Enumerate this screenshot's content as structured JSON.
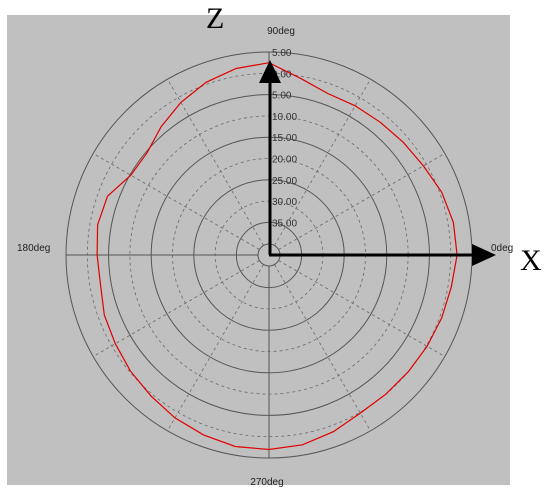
{
  "chart_data": {
    "type": "polar",
    "angle_labels": {
      "a0": "0deg",
      "a90": "90deg",
      "a180": "180deg",
      "a270": "270deg"
    },
    "radial_ticks": [
      "5.00",
      "0.00",
      "5.00",
      "10.00",
      "15.00",
      "20.00",
      "25.00",
      "30.00",
      "35.00"
    ],
    "axis_names": {
      "vertical": "Z",
      "horizontal": "X"
    },
    "grid": true,
    "series": [
      {
        "color": "#e00000",
        "angle_deg": [
          0,
          10,
          20,
          30,
          40,
          50,
          60,
          70,
          80,
          90,
          100,
          110,
          120,
          130,
          140,
          150,
          160,
          170,
          180,
          190,
          200,
          210,
          220,
          230,
          240,
          250,
          260,
          270,
          280,
          290,
          300,
          310,
          320,
          330,
          340,
          350
        ],
        "r_level": [
          3.5,
          3.7,
          4.5,
          5.8,
          6.5,
          7.0,
          7.2,
          7.3,
          5.5,
          2.5,
          3.2,
          4.5,
          6.3,
          8.3,
          10.3,
          10.2,
          7.3,
          6.8,
          7.3,
          7.5,
          6.5,
          6.0,
          5.2,
          4.5,
          3.5,
          2.7,
          2.0,
          2.0,
          2.4,
          3.5,
          4.8,
          5.0,
          5.0,
          4.8,
          4.5,
          4.2
        ]
      }
    ]
  }
}
